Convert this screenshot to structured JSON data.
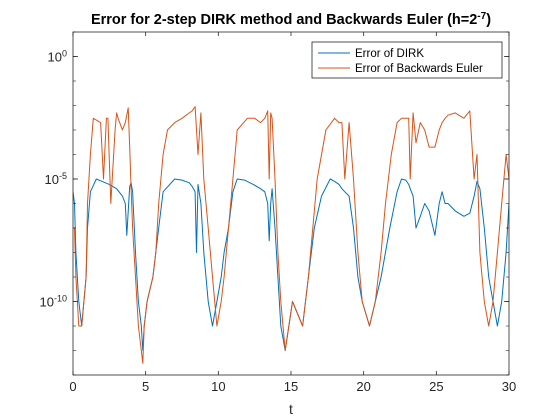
{
  "chart_data": {
    "type": "line",
    "title_main": "Error for 2-step DIRK method and Backwards Euler (h=2",
    "title_exp": "-7",
    "title_close": ")",
    "xlabel": "t",
    "ylabel": "",
    "xlim": [
      0,
      30
    ],
    "ylim": [
      1e-13,
      10.0
    ],
    "yscale": "log",
    "grid": false,
    "legend_position": "top-right",
    "x_ticks": [
      0,
      5,
      10,
      15,
      20,
      25,
      30
    ],
    "y_ticks": [
      {
        "value": 1e-10,
        "base": "10",
        "exp": "-10"
      },
      {
        "value": 1e-05,
        "base": "10",
        "exp": "-5"
      },
      {
        "value": 1,
        "base": "10",
        "exp": "0"
      }
    ],
    "series": [
      {
        "name": "Error of DIRK",
        "color": "#0072BD",
        "x": [
          0.0,
          0.1,
          0.2,
          0.4,
          0.6,
          0.9,
          1.0,
          1.2,
          1.6,
          2.0,
          2.5,
          3.0,
          3.4,
          3.6,
          3.7,
          3.9,
          4.0,
          4.1,
          4.3,
          4.5,
          4.7,
          4.8,
          4.9,
          5.1,
          5.5,
          5.7,
          5.9,
          6.2,
          7.0,
          7.5,
          8.0,
          8.2,
          8.4,
          8.5,
          8.6,
          8.8,
          9.0,
          9.3,
          9.6,
          9.9,
          10.2,
          10.4,
          10.7,
          11.0,
          11.3,
          11.8,
          12.4,
          12.9,
          13.2,
          13.4,
          13.5,
          13.6,
          13.7,
          13.9,
          14.1,
          14.3,
          14.6,
          15.1,
          15.8,
          16.2,
          16.6,
          17.1,
          17.7,
          18.0,
          18.3,
          18.5,
          18.7,
          19.0,
          19.3,
          19.6,
          19.9,
          20.4,
          20.8,
          21.2,
          21.8,
          22.3,
          22.6,
          22.9,
          23.1,
          23.2,
          23.4,
          23.6,
          23.9,
          24.2,
          24.5,
          24.9,
          25.2,
          25.4,
          25.6,
          25.8,
          26.3,
          26.9,
          27.3,
          27.6,
          27.8,
          28.0,
          28.3,
          28.6,
          28.9,
          29.2,
          29.5,
          29.8,
          30.0
        ],
        "y": [
          3e-06,
          1e-06,
          1e-08,
          1e-10,
          1e-11,
          1e-09,
          1e-07,
          3e-06,
          1e-05,
          8e-06,
          6e-06,
          4e-06,
          2e-06,
          1e-06,
          5e-08,
          5e-06,
          7e-06,
          3e-06,
          1e-08,
          1e-10,
          1e-11,
          1e-12,
          1e-11,
          1e-10,
          1e-09,
          1e-08,
          1e-07,
          3e-06,
          1e-05,
          9e-06,
          7e-06,
          5e-06,
          3e-06,
          1e-08,
          6e-06,
          1e-06,
          1e-08,
          1e-10,
          1e-11,
          1e-10,
          1e-09,
          1e-08,
          1e-07,
          3e-06,
          1e-05,
          9e-06,
          6e-06,
          4e-06,
          3e-06,
          1e-06,
          3e-08,
          1e-06,
          4e-06,
          1e-07,
          1e-09,
          1e-11,
          1e-12,
          1e-10,
          1e-11,
          1e-09,
          1e-07,
          2e-06,
          1e-05,
          8e-06,
          6e-06,
          4e-06,
          3e-06,
          2e-06,
          1e-07,
          1e-09,
          1e-10,
          1e-11,
          1e-10,
          1e-09,
          1e-07,
          3e-06,
          1e-05,
          9e-06,
          6e-06,
          4e-06,
          2e-06,
          1e-07,
          3e-07,
          1e-06,
          5e-07,
          5e-08,
          1e-06,
          3e-06,
          1e-06,
          1e-06,
          5e-07,
          3e-07,
          4e-07,
          2e-06,
          8e-06,
          4e-06,
          1e-07,
          1e-09,
          1e-10,
          1e-11,
          1e-10,
          1e-08,
          1e-06
        ]
      },
      {
        "name": "Error of Backwards Euler",
        "color": "#D95319",
        "x": [
          0.0,
          0.1,
          0.2,
          0.4,
          0.6,
          0.9,
          1.0,
          1.2,
          1.4,
          1.9,
          2.1,
          2.3,
          2.4,
          2.6,
          2.9,
          3.0,
          3.1,
          3.4,
          3.6,
          3.8,
          3.9,
          4.0,
          4.1,
          4.3,
          4.5,
          4.7,
          4.8,
          4.9,
          5.1,
          5.5,
          5.7,
          5.9,
          6.2,
          6.5,
          7.0,
          7.5,
          8.0,
          8.2,
          8.4,
          8.6,
          8.8,
          9.0,
          9.3,
          9.6,
          9.9,
          10.2,
          10.4,
          10.7,
          11.0,
          11.3,
          12.0,
          12.5,
          12.9,
          13.2,
          13.4,
          13.5,
          13.6,
          13.7,
          13.9,
          14.1,
          14.3,
          14.6,
          15.1,
          15.8,
          16.2,
          16.5,
          16.8,
          17.4,
          18.0,
          18.3,
          18.5,
          18.7,
          19.0,
          19.3,
          19.6,
          19.9,
          20.4,
          20.8,
          21.2,
          21.5,
          21.9,
          22.3,
          22.6,
          22.9,
          23.1,
          23.2,
          23.4,
          23.6,
          23.9,
          24.2,
          24.5,
          24.9,
          25.2,
          25.4,
          25.6,
          25.8,
          26.3,
          26.9,
          27.3,
          27.6,
          27.8,
          28.0,
          28.3,
          28.6,
          28.9,
          29.2,
          29.5,
          29.8,
          30.0
        ],
        "y": [
          1e-07,
          1e-07,
          1e-09,
          1e-11,
          1e-11,
          1e-09,
          1e-06,
          0.0001,
          0.003,
          0.002,
          1e-05,
          0.003,
          0.003,
          1e-06,
          0.001,
          0.005,
          0.003,
          0.001,
          0.002,
          0.008,
          0.0002,
          4e-06,
          1e-07,
          1e-09,
          1e-11,
          1e-12,
          3e-13,
          1e-11,
          1e-10,
          1e-09,
          1e-08,
          1e-06,
          0.0001,
          0.001,
          0.002,
          0.003,
          0.005,
          0.006,
          0.009,
          0.0001,
          0.005,
          1e-05,
          1e-07,
          1e-09,
          1e-11,
          1e-10,
          1e-09,
          1e-07,
          1e-05,
          0.001,
          0.003,
          0.003,
          0.002,
          0.003,
          0.006,
          1e-05,
          0.005,
          0.003,
          1e-05,
          1e-08,
          1e-10,
          1e-12,
          1e-10,
          1e-11,
          1e-09,
          1e-07,
          1e-05,
          0.001,
          0.003,
          0.002,
          0.002,
          1e-05,
          0.002,
          1e-05,
          1e-08,
          1e-10,
          1e-11,
          1e-10,
          1e-08,
          1e-06,
          0.0001,
          0.002,
          0.003,
          0.003,
          0.003,
          1e-05,
          0.005,
          0.0003,
          0.002,
          0.001,
          0.0002,
          0.0002,
          0.001,
          0.002,
          0.003,
          0.004,
          0.005,
          0.003,
          0.006,
          1e-05,
          0.0001,
          1e-08,
          1e-10,
          1e-11,
          1e-10,
          1e-08,
          1e-06,
          0.0001,
          1e-05
        ]
      }
    ]
  }
}
